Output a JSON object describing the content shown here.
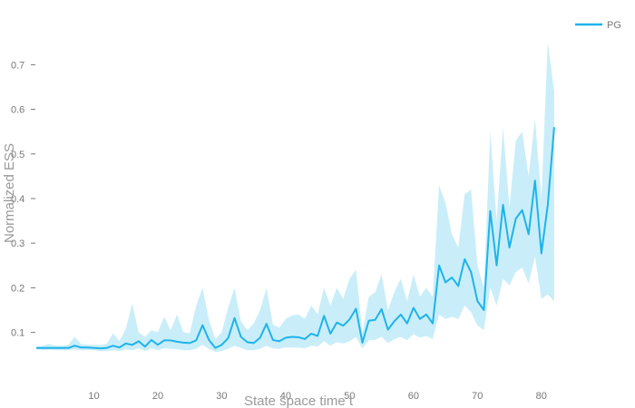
{
  "chart_data": {
    "type": "line",
    "title": "",
    "xlabel": "State space time t",
    "ylabel": "Normalized ESS",
    "xlim": [
      0,
      84
    ],
    "ylim": [
      0.03,
      0.78
    ],
    "xticks": [
      10,
      20,
      30,
      40,
      50,
      60,
      70,
      80
    ],
    "yticks": [
      0.1,
      0.2,
      0.3,
      0.4,
      0.5,
      0.6,
      0.7
    ],
    "ytick_labels": [
      "0.1",
      "0.2",
      "0.3",
      "0.4",
      "0.5",
      "0.6",
      "0.7"
    ],
    "grid": false,
    "legend_position": "top-right",
    "colors": {
      "line": "#1fb3ea",
      "band": "#c9eef9",
      "axis_text": "#777777"
    },
    "series": [
      {
        "name": "PG",
        "x": [
          1,
          2,
          3,
          4,
          5,
          6,
          7,
          8,
          9,
          10,
          11,
          12,
          13,
          14,
          15,
          16,
          17,
          18,
          19,
          20,
          21,
          22,
          23,
          24,
          25,
          26,
          27,
          28,
          29,
          30,
          31,
          32,
          33,
          34,
          35,
          36,
          37,
          38,
          39,
          40,
          41,
          42,
          43,
          44,
          45,
          46,
          47,
          48,
          49,
          50,
          51,
          52,
          53,
          54,
          55,
          56,
          57,
          58,
          59,
          60,
          61,
          62,
          63,
          64,
          65,
          66,
          67,
          68,
          69,
          70,
          71,
          72,
          73,
          74,
          75,
          76,
          77,
          78,
          79,
          80,
          81,
          82
        ],
        "y": [
          0.065,
          0.065,
          0.065,
          0.065,
          0.065,
          0.065,
          0.07,
          0.066,
          0.066,
          0.065,
          0.064,
          0.065,
          0.07,
          0.066,
          0.075,
          0.072,
          0.08,
          0.068,
          0.083,
          0.072,
          0.082,
          0.082,
          0.079,
          0.077,
          0.076,
          0.082,
          0.116,
          0.083,
          0.065,
          0.072,
          0.087,
          0.132,
          0.09,
          0.078,
          0.076,
          0.088,
          0.119,
          0.083,
          0.08,
          0.088,
          0.09,
          0.089,
          0.085,
          0.097,
          0.092,
          0.137,
          0.097,
          0.122,
          0.115,
          0.129,
          0.153,
          0.077,
          0.126,
          0.128,
          0.152,
          0.106,
          0.125,
          0.14,
          0.12,
          0.155,
          0.13,
          0.14,
          0.12,
          0.25,
          0.212,
          0.223,
          0.204,
          0.264,
          0.235,
          0.17,
          0.15,
          0.372,
          0.25,
          0.386,
          0.29,
          0.355,
          0.374,
          0.32,
          0.44,
          0.277,
          0.386,
          0.56
        ],
        "lower": [
          0.062,
          0.06,
          0.061,
          0.06,
          0.06,
          0.06,
          0.062,
          0.06,
          0.06,
          0.06,
          0.058,
          0.058,
          0.06,
          0.058,
          0.062,
          0.06,
          0.064,
          0.058,
          0.064,
          0.06,
          0.064,
          0.063,
          0.062,
          0.06,
          0.06,
          0.063,
          0.072,
          0.063,
          0.056,
          0.058,
          0.063,
          0.07,
          0.065,
          0.06,
          0.06,
          0.063,
          0.07,
          0.064,
          0.063,
          0.066,
          0.066,
          0.066,
          0.064,
          0.07,
          0.068,
          0.08,
          0.07,
          0.078,
          0.075,
          0.08,
          0.09,
          0.064,
          0.082,
          0.083,
          0.09,
          0.076,
          0.085,
          0.09,
          0.082,
          0.096,
          0.088,
          0.092,
          0.085,
          0.14,
          0.13,
          0.135,
          0.13,
          0.16,
          0.145,
          0.115,
          0.105,
          0.2,
          0.16,
          0.22,
          0.205,
          0.235,
          0.245,
          0.21,
          0.27,
          0.175,
          0.185,
          0.17
        ],
        "upper": [
          0.068,
          0.07,
          0.074,
          0.07,
          0.07,
          0.072,
          0.09,
          0.074,
          0.072,
          0.072,
          0.072,
          0.074,
          0.098,
          0.08,
          0.108,
          0.165,
          0.1,
          0.09,
          0.105,
          0.1,
          0.135,
          0.105,
          0.14,
          0.1,
          0.098,
          0.16,
          0.2,
          0.128,
          0.085,
          0.1,
          0.155,
          0.2,
          0.125,
          0.105,
          0.12,
          0.15,
          0.2,
          0.118,
          0.11,
          0.13,
          0.138,
          0.14,
          0.13,
          0.16,
          0.14,
          0.2,
          0.16,
          0.2,
          0.175,
          0.22,
          0.24,
          0.1,
          0.18,
          0.19,
          0.23,
          0.15,
          0.19,
          0.22,
          0.17,
          0.23,
          0.18,
          0.2,
          0.18,
          0.43,
          0.39,
          0.32,
          0.29,
          0.41,
          0.42,
          0.25,
          0.2,
          0.55,
          0.35,
          0.56,
          0.38,
          0.53,
          0.55,
          0.45,
          0.58,
          0.4,
          0.75,
          0.64
        ]
      }
    ]
  }
}
